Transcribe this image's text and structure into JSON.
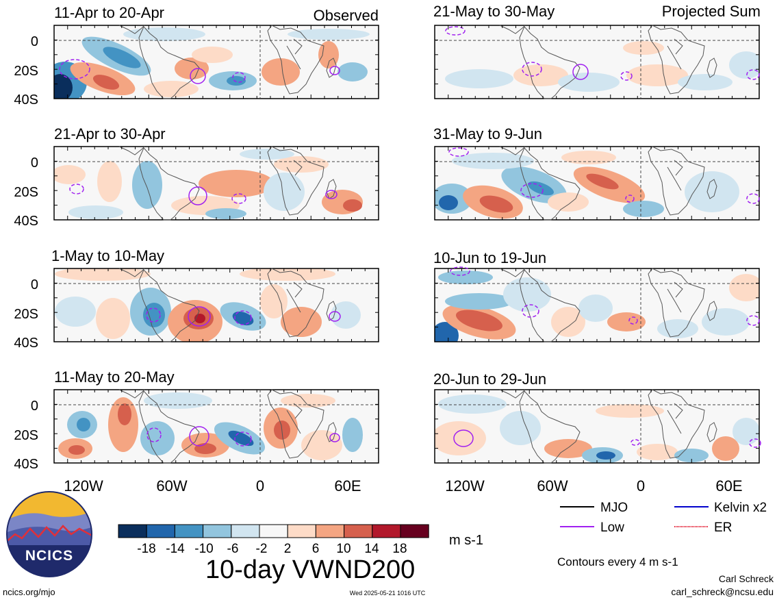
{
  "columns": {
    "left_label": "Observed",
    "right_label": "Projected Sum"
  },
  "panels": [
    {
      "title": "11-Apr to 20-Apr",
      "column": "observed"
    },
    {
      "title": "21-Apr to 30-Apr",
      "column": "observed"
    },
    {
      "title": "1-May to 10-May",
      "column": "observed"
    },
    {
      "title": "11-May to 20-May",
      "column": "observed"
    },
    {
      "title": "21-May to 30-May",
      "column": "projected"
    },
    {
      "title": "31-May to 9-Jun",
      "column": "projected"
    },
    {
      "title": "10-Jun to 19-Jun",
      "column": "projected"
    },
    {
      "title": "20-Jun to 29-Jun",
      "column": "projected"
    }
  ],
  "axes": {
    "lat_labels": [
      "0",
      "20S",
      "40S"
    ],
    "lon_labels": [
      "120W",
      "60W",
      "0",
      "60E"
    ]
  },
  "colorbar": {
    "tick_labels": [
      "-18",
      "-14",
      "-10",
      "-6",
      "-2",
      "2",
      "6",
      "10",
      "14",
      "18"
    ],
    "colors": [
      "#0a2e5c",
      "#2166ac",
      "#4393c3",
      "#92c5de",
      "#d1e5f0",
      "#f7f7f7",
      "#fddbc7",
      "#f4a582",
      "#d6604d",
      "#b2182b",
      "#67001f"
    ],
    "units": "m s-1"
  },
  "title": "10-day VWND200",
  "legend": {
    "items": [
      {
        "label": "MJO",
        "color": "#000000"
      },
      {
        "label": "Kelvin x2",
        "color": "#0000cc"
      },
      {
        "label": "Low",
        "color": "#a020f0"
      },
      {
        "label": "ER",
        "color": "#e0001c"
      }
    ],
    "note": "Contours every 4 m s-1"
  },
  "footer": {
    "url": "ncics.org/mjo",
    "timestamp": "Wed 2025-05-21 1016 UTC",
    "author": "Carl Schreck",
    "email": "carl_schreck@ncsu.edu"
  },
  "logo": {
    "text": "NCICS"
  }
}
